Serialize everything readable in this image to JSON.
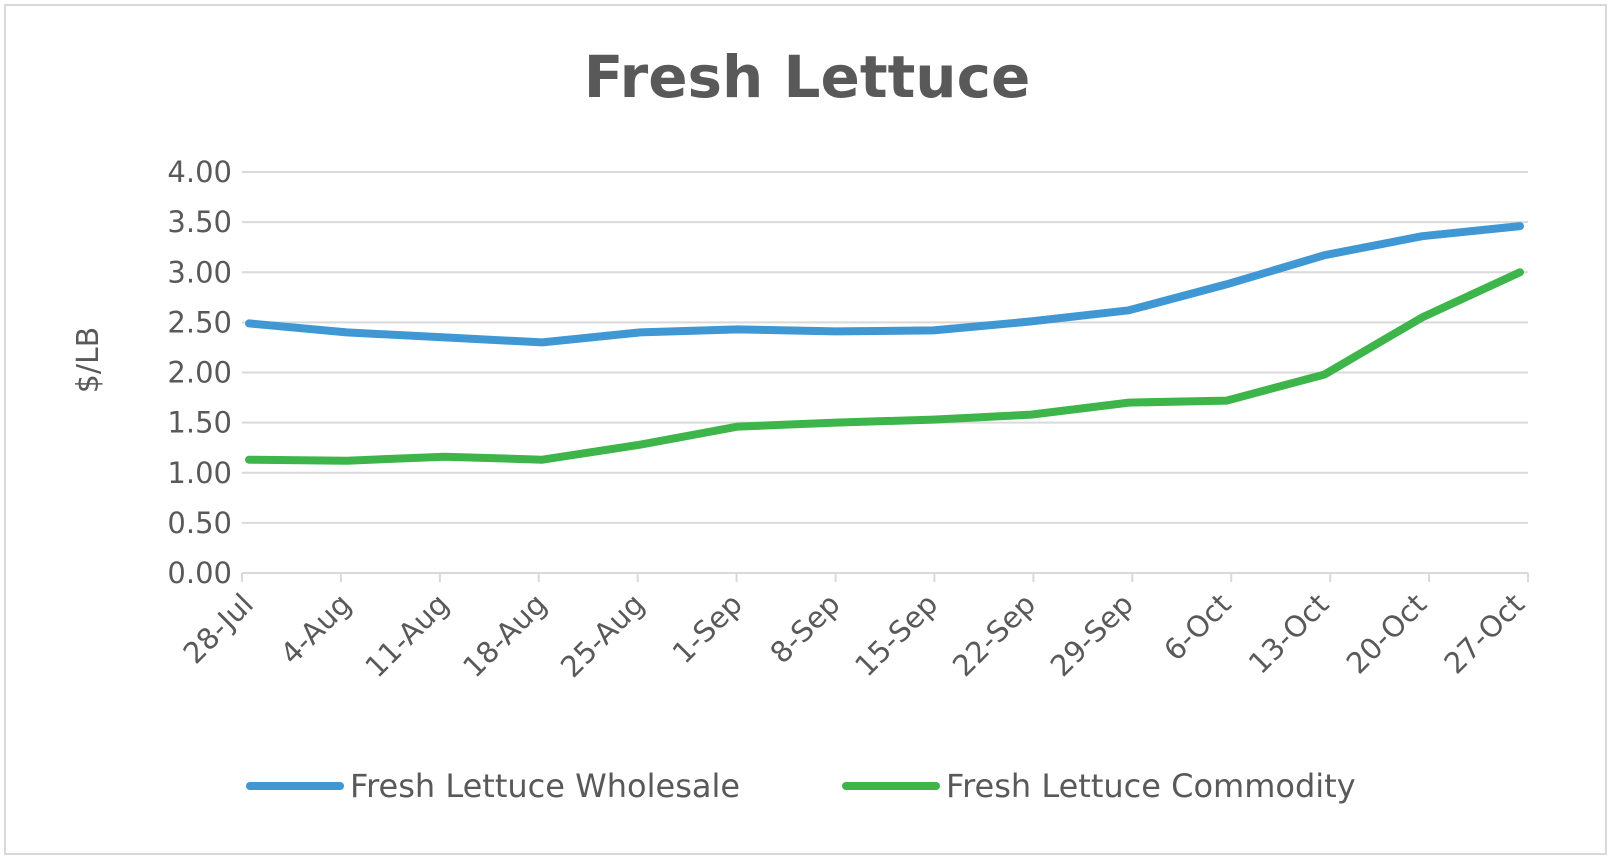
{
  "chart_data": {
    "type": "line",
    "title": "Fresh Lettuce",
    "xlabel": "",
    "ylabel": "$/LB",
    "ylim": [
      0,
      4
    ],
    "ytick_step": 0.5,
    "ytick_labels": [
      "0.00",
      "0.50",
      "1.00",
      "1.50",
      "2.00",
      "2.50",
      "3.00",
      "3.50",
      "4.00"
    ],
    "grid": true,
    "legend_position": "bottom",
    "categories": [
      "28-Jul",
      "4-Aug",
      "11-Aug",
      "18-Aug",
      "25-Aug",
      "1-Sep",
      "8-Sep",
      "15-Sep",
      "22-Sep",
      "29-Sep",
      "6-Oct",
      "13-Oct",
      "20-Oct",
      "27-Oct"
    ],
    "series": [
      {
        "name": "Fresh Lettuce Wholesale",
        "color": "#3f97d3",
        "values": [
          2.49,
          2.4,
          2.35,
          2.3,
          2.4,
          2.43,
          2.41,
          2.42,
          2.51,
          2.62,
          2.88,
          3.17,
          3.36,
          3.46
        ]
      },
      {
        "name": "Fresh Lettuce Commodity",
        "color": "#3db54a",
        "values": [
          1.13,
          1.12,
          1.16,
          1.13,
          1.28,
          1.46,
          1.5,
          1.53,
          1.58,
          1.7,
          1.72,
          1.98,
          2.55,
          3.0
        ]
      }
    ]
  }
}
